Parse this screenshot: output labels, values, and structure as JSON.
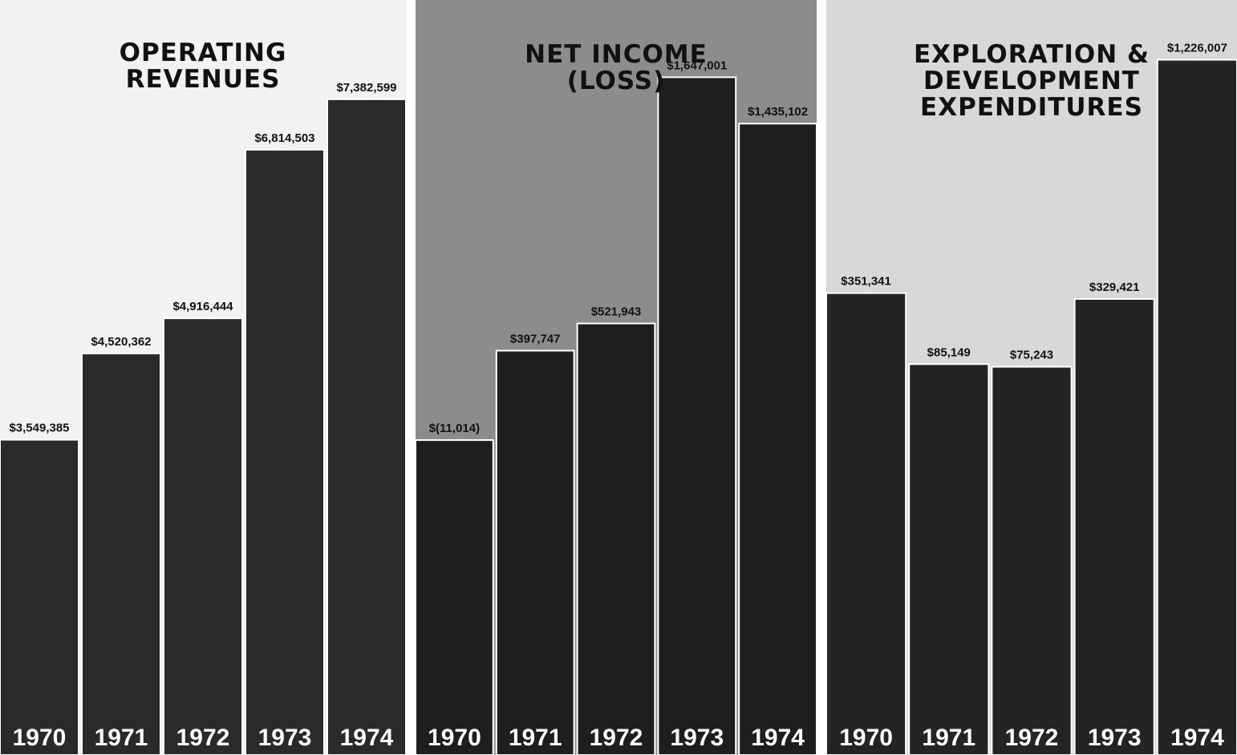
{
  "chart_data": [
    {
      "type": "bar",
      "title_lines": [
        "OPERATING",
        "REVENUES"
      ],
      "categories": [
        "1970",
        "1971",
        "1972",
        "1973",
        "1974"
      ],
      "values": [
        3549385,
        4520362,
        4916444,
        6814503,
        7382599
      ],
      "value_labels": [
        "$3,549,385",
        "$4,520,362",
        "$4,916,444",
        "$6,814,503",
        "$7,382,599"
      ],
      "ylim": [
        0,
        8500000
      ],
      "colors": {
        "background": "#f2f2f2",
        "bar": "#2a2a2a",
        "text": "#111111",
        "year": "#ffffff"
      }
    },
    {
      "type": "bar",
      "title_lines": [
        "NET INCOME",
        "(LOSS)"
      ],
      "categories": [
        "1970",
        "1971",
        "1972",
        "1973",
        "1974"
      ],
      "values": [
        -11014,
        397747,
        521943,
        1647001,
        1435102
      ],
      "value_labels": [
        "$(11,014)",
        "$397,747",
        "$521,943",
        "$1,647,001",
        "$1,435,102"
      ],
      "ylim": [
        -1450000,
        2000000
      ],
      "colors": {
        "background": "#8c8c8c",
        "bar": "#1e1e1e",
        "text": "#111111",
        "year": "#ffffff"
      }
    },
    {
      "type": "bar",
      "title_lines": [
        "EXPLORATION &",
        "DEVELOPMENT",
        "EXPENDITURES"
      ],
      "categories": [
        "1970",
        "1971",
        "1972",
        "1973",
        "1974"
      ],
      "values": [
        351341,
        85149,
        75243,
        329421,
        1226007
      ],
      "value_labels": [
        "$351,341",
        "$85,149",
        "$75,243",
        "$329,421",
        "$1,226,007"
      ],
      "ylim": [
        -1380000,
        1450000
      ],
      "colors": {
        "background": "#d8d8d8",
        "bar": "#242424",
        "text": "#111111",
        "year": "#ffffff"
      }
    }
  ]
}
